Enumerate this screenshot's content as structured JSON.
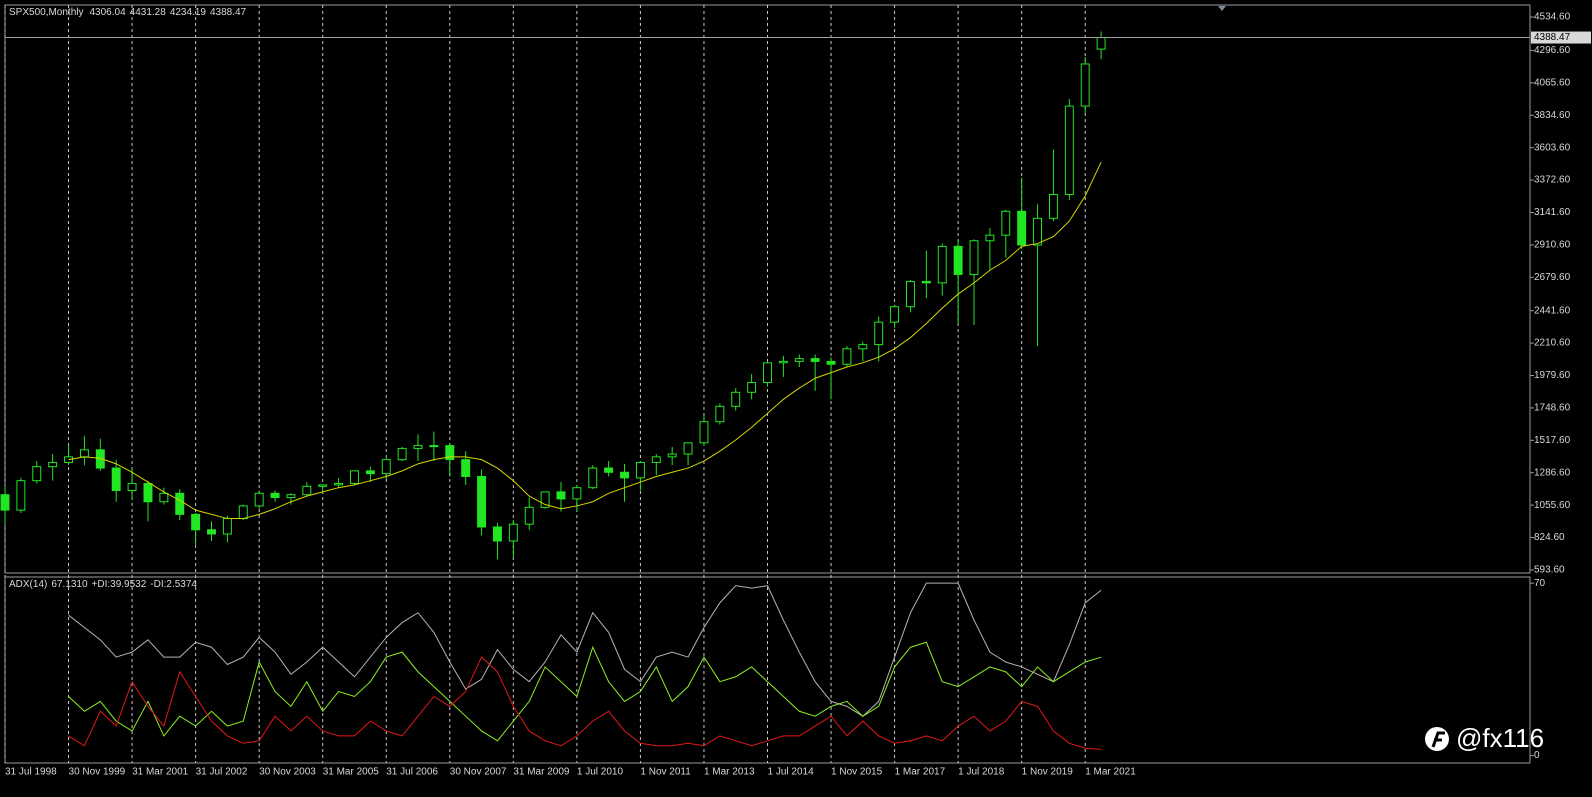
{
  "chart_data": [
    {
      "type": "candlestick",
      "title": "SPX500,Monthly",
      "header_values": [
        4306.04,
        4431.28,
        4234.19,
        4388.47
      ],
      "x": [
        0,
        4,
        8,
        12,
        16,
        20,
        24,
        28,
        32,
        36,
        40,
        44,
        48,
        52,
        56,
        60,
        64,
        68,
        72,
        76,
        80,
        84,
        88,
        92,
        96,
        100,
        104,
        108,
        112,
        116,
        120,
        124,
        128,
        132,
        136,
        140,
        144,
        148,
        152,
        156,
        160,
        164,
        168,
        172,
        176,
        180,
        184,
        188,
        192,
        196,
        200,
        204,
        208,
        212,
        216,
        220,
        224,
        228,
        232,
        236,
        240,
        244,
        248,
        252,
        256,
        260,
        264,
        268,
        272,
        276
      ],
      "open": [
        1130,
        1020,
        1230,
        1330,
        1360,
        1400,
        1450,
        1320,
        1160,
        1210,
        1080,
        1140,
        990,
        880,
        850,
        960,
        1050,
        1140,
        1110,
        1130,
        1190,
        1200,
        1210,
        1300,
        1280,
        1380,
        1460,
        1480,
        1480,
        1380,
        1260,
        900,
        800,
        920,
        1040,
        1150,
        1100,
        1180,
        1320,
        1290,
        1250,
        1360,
        1400,
        1420,
        1500,
        1650,
        1760,
        1860,
        1930,
        2070,
        2080,
        2100,
        2080,
        2060,
        2170,
        2200,
        2360,
        2470,
        2650,
        2640,
        2900,
        2700,
        2940,
        2980,
        3150,
        2910,
        3100,
        3270,
        3900,
        4306.04
      ],
      "high": [
        1190,
        1250,
        1370,
        1420,
        1480,
        1550,
        1530,
        1380,
        1320,
        1230,
        1180,
        1170,
        1000,
        940,
        980,
        1060,
        1160,
        1160,
        1140,
        1220,
        1200,
        1250,
        1300,
        1330,
        1390,
        1470,
        1560,
        1580,
        1500,
        1440,
        1310,
        930,
        950,
        1110,
        1150,
        1220,
        1200,
        1340,
        1370,
        1350,
        1370,
        1420,
        1470,
        1500,
        1690,
        1780,
        1890,
        1990,
        2080,
        2120,
        2130,
        2130,
        2110,
        2190,
        2220,
        2400,
        2480,
        2660,
        2870,
        2920,
        2950,
        2950,
        3030,
        3160,
        3390,
        3200,
        3590,
        3950,
        4250,
        4431.28
      ],
      "low": [
        920,
        1000,
        1210,
        1230,
        1340,
        1340,
        1300,
        1080,
        1100,
        940,
        1060,
        950,
        770,
        800,
        790,
        950,
        1030,
        1080,
        1060,
        1120,
        1140,
        1180,
        1200,
        1220,
        1240,
        1370,
        1370,
        1370,
        1260,
        1200,
        840,
        670,
        680,
        880,
        1030,
        1010,
        1010,
        1170,
        1260,
        1080,
        1160,
        1270,
        1340,
        1340,
        1480,
        1630,
        1730,
        1810,
        1900,
        1970,
        2040,
        1870,
        1810,
        2040,
        2080,
        2080,
        2320,
        2430,
        2530,
        2550,
        2350,
        2340,
        2730,
        2820,
        2880,
        2190,
        3080,
        3230,
        3850,
        4234.19
      ],
      "close": [
        1020,
        1230,
        1330,
        1360,
        1400,
        1450,
        1320,
        1160,
        1210,
        1080,
        1140,
        990,
        880,
        850,
        960,
        1050,
        1140,
        1110,
        1130,
        1190,
        1200,
        1210,
        1300,
        1280,
        1380,
        1460,
        1480,
        1480,
        1380,
        1260,
        900,
        800,
        920,
        1040,
        1150,
        1100,
        1180,
        1320,
        1290,
        1250,
        1360,
        1400,
        1420,
        1500,
        1650,
        1760,
        1860,
        1930,
        2070,
        2080,
        2100,
        2080,
        2060,
        2170,
        2200,
        2360,
        2470,
        2650,
        2640,
        2900,
        2700,
        2940,
        2980,
        3150,
        2910,
        3100,
        3270,
        3900,
        4200,
        4388.47
      ],
      "color": "#22e622",
      "moving_average": {
        "color": "#d6d600",
        "values": [
          null,
          null,
          null,
          null,
          1380,
          1400,
          1390,
          1350,
          1290,
          1220,
          1150,
          1090,
          1020,
          990,
          960,
          960,
          990,
          1030,
          1080,
          1120,
          1150,
          1180,
          1200,
          1230,
          1260,
          1300,
          1350,
          1380,
          1400,
          1400,
          1380,
          1320,
          1230,
          1120,
          1060,
          1030,
          1050,
          1080,
          1140,
          1180,
          1220,
          1260,
          1290,
          1320,
          1370,
          1440,
          1520,
          1610,
          1710,
          1810,
          1890,
          1960,
          2000,
          2040,
          2070,
          2110,
          2170,
          2250,
          2350,
          2460,
          2560,
          2640,
          2730,
          2800,
          2900,
          2920,
          2970,
          3080,
          3260,
          3500
        ]
      },
      "last_price": 4388.47,
      "xlim": [
        0,
        384
      ],
      "xticks": [
        {
          "value": 0,
          "label": "31 Jul 1998"
        },
        {
          "value": 16,
          "label": "30 Nov 1999"
        },
        {
          "value": 32,
          "label": "31 Mar 2001"
        },
        {
          "value": 48,
          "label": "31 Jul 2002"
        },
        {
          "value": 64,
          "label": "30 Nov 2003"
        },
        {
          "value": 80,
          "label": "31 Mar 2005"
        },
        {
          "value": 96,
          "label": "31 Jul 2006"
        },
        {
          "value": 112,
          "label": "30 Nov 2007"
        },
        {
          "value": 128,
          "label": "31 Mar 2009"
        },
        {
          "value": 144,
          "label": "1 Jul 2010"
        },
        {
          "value": 160,
          "label": "1 Nov 2011"
        },
        {
          "value": 176,
          "label": "1 Mar 2013"
        },
        {
          "value": 192,
          "label": "1 Jul 2014"
        },
        {
          "value": 208,
          "label": "1 Nov 2015"
        },
        {
          "value": 224,
          "label": "1 Mar 2017"
        },
        {
          "value": 240,
          "label": "1 Jul 2018"
        },
        {
          "value": 256,
          "label": "1 Nov 2019"
        },
        {
          "value": 272,
          "label": "1 Mar 2021"
        }
      ],
      "ylim": [
        572,
        4599
      ],
      "yticks": [
        {
          "value": 593.6,
          "label": "593.60"
        },
        {
          "value": 824.6,
          "label": "824.60"
        },
        {
          "value": 1055.6,
          "label": "1055.60"
        },
        {
          "value": 1286.6,
          "label": "1286.60"
        },
        {
          "value": 1517.6,
          "label": "1517.60"
        },
        {
          "value": 1748.6,
          "label": "1748.60"
        },
        {
          "value": 1979.6,
          "label": "1979.60"
        },
        {
          "value": 2210.6,
          "label": "2210.60"
        },
        {
          "value": 2441.6,
          "label": "2441.60"
        },
        {
          "value": 2679.6,
          "label": "2679.60"
        },
        {
          "value": 2910.6,
          "label": "2910.60"
        },
        {
          "value": 3141.6,
          "label": "3141.60"
        },
        {
          "value": 3372.6,
          "label": "3372.60"
        },
        {
          "value": 3603.6,
          "label": "3603.60"
        },
        {
          "value": 3834.6,
          "label": "3834.60"
        },
        {
          "value": 4065.6,
          "label": "4065.60"
        },
        {
          "value": 4296.6,
          "label": "4296.60"
        },
        {
          "value": 4534.6,
          "label": "4534.60"
        }
      ],
      "grid": true
    },
    {
      "type": "line",
      "x": [
        0,
        4,
        8,
        12,
        16,
        20,
        24,
        28,
        32,
        36,
        40,
        44,
        48,
        52,
        56,
        60,
        64,
        68,
        72,
        76,
        80,
        84,
        88,
        92,
        96,
        100,
        104,
        108,
        112,
        116,
        120,
        124,
        128,
        132,
        136,
        140,
        144,
        148,
        152,
        156,
        160,
        164,
        168,
        172,
        176,
        180,
        184,
        188,
        192,
        196,
        200,
        204,
        208,
        212,
        216,
        220,
        224,
        228,
        232,
        236,
        240,
        244,
        248,
        252,
        256,
        260,
        264,
        268,
        272,
        276
      ],
      "series": [
        {
          "name": "ADX(14)",
          "last_label": "67.1310",
          "color": "#b4b4b4",
          "values": [
            null,
            null,
            null,
            null,
            57,
            52,
            47,
            40,
            42,
            47,
            40,
            40,
            46,
            44,
            37,
            40,
            48,
            42,
            33,
            38,
            44,
            38,
            32,
            40,
            48,
            54,
            58,
            50,
            38,
            27,
            31,
            43,
            35,
            30,
            38,
            49,
            42,
            58,
            50,
            35,
            30,
            40,
            42,
            40,
            52,
            62,
            69,
            68,
            69,
            55,
            42,
            30,
            22,
            20,
            16,
            22,
            40,
            58,
            70,
            70,
            70,
            55,
            42,
            38,
            36,
            33,
            30,
            45,
            62,
            67.131
          ]
        },
        {
          "name": "+DI:",
          "last_label": "39.9532",
          "color": "#8cf020",
          "values": [
            null,
            null,
            null,
            null,
            24,
            18,
            22,
            14,
            10,
            22,
            8,
            16,
            12,
            18,
            12,
            14,
            38,
            26,
            20,
            30,
            18,
            26,
            24,
            30,
            40,
            42,
            34,
            28,
            22,
            16,
            10,
            6,
            14,
            22,
            36,
            30,
            24,
            44,
            30,
            22,
            26,
            36,
            22,
            28,
            40,
            30,
            32,
            36,
            30,
            24,
            18,
            16,
            20,
            22,
            16,
            20,
            36,
            44,
            46,
            30,
            28,
            32,
            36,
            34,
            28,
            36,
            30,
            34,
            38,
            39.9532
          ]
        },
        {
          "name": "-DI:",
          "last_label": "2.5374",
          "color": "#e01818",
          "values": [
            null,
            null,
            null,
            null,
            8,
            4,
            18,
            12,
            30,
            20,
            12,
            34,
            24,
            14,
            8,
            5,
            6,
            16,
            10,
            16,
            10,
            8,
            8,
            14,
            10,
            8,
            16,
            24,
            20,
            26,
            40,
            34,
            20,
            10,
            6,
            4,
            8,
            14,
            18,
            10,
            5,
            4,
            4,
            5,
            4,
            8,
            6,
            4,
            6,
            8,
            8,
            12,
            16,
            8,
            14,
            8,
            5,
            6,
            8,
            6,
            12,
            16,
            10,
            14,
            22,
            20,
            10,
            5,
            3,
            2.5374
          ]
        }
      ],
      "xlim": [
        0,
        384
      ],
      "ylim": [
        -3,
        72.5
      ],
      "yticks": [
        0,
        70
      ]
    }
  ],
  "watermark": "@fx116"
}
